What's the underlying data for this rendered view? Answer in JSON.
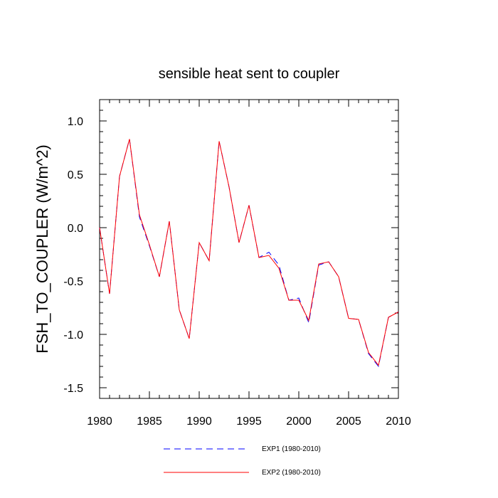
{
  "chart_data": {
    "type": "line",
    "title": "sensible heat sent to coupler",
    "xlabel": "",
    "ylabel": "FSH_TO_COUPLER  (W/m^2)",
    "xlim": [
      1980,
      2010
    ],
    "ylim": [
      -1.6,
      1.2
    ],
    "x_ticks": [
      1980,
      1985,
      1990,
      1995,
      2000,
      2005,
      2010
    ],
    "x_tick_labels": [
      "1980",
      "1985",
      "1990",
      "1995",
      "2000",
      "2005",
      "2010"
    ],
    "y_ticks": [
      -1.5,
      -1.0,
      -0.5,
      0.0,
      0.5,
      1.0
    ],
    "y_tick_labels": [
      "-1.5",
      "-1.0",
      "-0.5",
      "0.0",
      "0.5",
      "1.0"
    ],
    "grid": false,
    "legend_position": "bottom-center",
    "x": [
      1980,
      1981,
      1982,
      1983,
      1984,
      1985,
      1986,
      1987,
      1988,
      1989,
      1990,
      1991,
      1992,
      1993,
      1994,
      1995,
      1996,
      1997,
      1998,
      1999,
      2000,
      2001,
      2002,
      2003,
      2004,
      2005,
      2006,
      2007,
      2008,
      2009,
      2010
    ],
    "series": [
      {
        "name": "EXP1 (1980-2010)",
        "color": "#0000ff",
        "dash": "dashed",
        "values": [
          0.0,
          -0.62,
          0.48,
          0.83,
          0.1,
          -0.17,
          -0.46,
          0.06,
          -0.77,
          -1.04,
          -0.14,
          -0.31,
          0.81,
          0.38,
          -0.14,
          0.21,
          -0.28,
          -0.23,
          -0.35,
          -0.68,
          -0.66,
          -0.89,
          -0.35,
          -0.32,
          -0.46,
          -0.85,
          -0.86,
          -1.18,
          -1.3,
          -0.84,
          -0.79
        ]
      },
      {
        "name": "EXP2 (1980-2010)",
        "color": "#ff0000",
        "dash": "solid",
        "values": [
          0.0,
          -0.62,
          0.48,
          0.83,
          0.12,
          -0.16,
          -0.46,
          0.06,
          -0.77,
          -1.04,
          -0.14,
          -0.31,
          0.81,
          0.38,
          -0.14,
          0.21,
          -0.28,
          -0.26,
          -0.38,
          -0.68,
          -0.68,
          -0.87,
          -0.34,
          -0.32,
          -0.46,
          -0.85,
          -0.86,
          -1.17,
          -1.29,
          -0.84,
          -0.79
        ]
      }
    ]
  }
}
